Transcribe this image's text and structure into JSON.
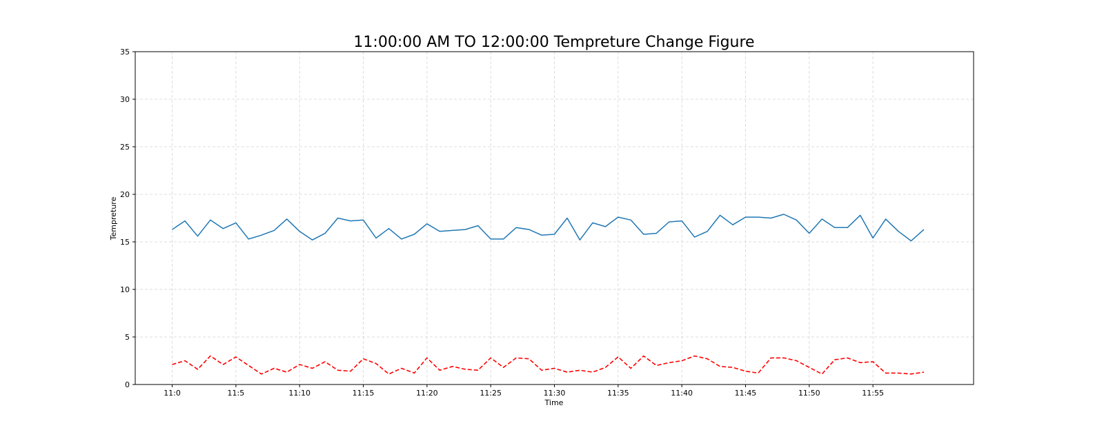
{
  "chart_data": {
    "type": "line",
    "title": "11:00:00 AM TO 12:00:00 Tempreture Change Figure",
    "xlabel": "Time",
    "ylabel": "Tempreture",
    "ylim": [
      0,
      35
    ],
    "yticks": [
      "0",
      "5",
      "10",
      "15",
      "20",
      "25",
      "30",
      "35"
    ],
    "xlim": [
      -2.9,
      62.9
    ],
    "xticks": [
      {
        "value": 0,
        "label": "11:0"
      },
      {
        "value": 5,
        "label": "11:5"
      },
      {
        "value": 10,
        "label": "11:10"
      },
      {
        "value": 15,
        "label": "11:15"
      },
      {
        "value": 20,
        "label": "11:20"
      },
      {
        "value": 25,
        "label": "11:25"
      },
      {
        "value": 30,
        "label": "11:30"
      },
      {
        "value": 35,
        "label": "11:35"
      },
      {
        "value": 40,
        "label": "11:40"
      },
      {
        "value": 45,
        "label": "11:45"
      },
      {
        "value": 50,
        "label": "11:50"
      },
      {
        "value": 55,
        "label": "11:55"
      }
    ],
    "grid": true,
    "x": [
      0,
      1,
      2,
      3,
      4,
      5,
      6,
      7,
      8,
      9,
      10,
      11,
      12,
      13,
      14,
      15,
      16,
      17,
      18,
      19,
      20,
      21,
      22,
      23,
      24,
      25,
      26,
      27,
      28,
      29,
      30,
      31,
      32,
      33,
      34,
      35,
      36,
      37,
      38,
      39,
      40,
      41,
      42,
      43,
      44,
      45,
      46,
      47,
      48,
      49,
      50,
      51,
      52,
      53,
      54,
      55,
      56,
      57,
      58,
      59
    ],
    "series": [
      {
        "color": "#1f77b4",
        "style": "solid",
        "values": [
          16.3,
          17.2,
          15.6,
          17.3,
          16.4,
          17.0,
          15.3,
          15.7,
          16.2,
          17.4,
          16.1,
          15.2,
          15.9,
          17.5,
          17.2,
          17.3,
          15.4,
          16.4,
          15.3,
          15.8,
          16.9,
          16.1,
          16.2,
          16.3,
          16.7,
          15.3,
          15.3,
          16.5,
          16.3,
          15.7,
          15.8,
          17.5,
          15.2,
          17.0,
          16.6,
          17.6,
          17.3,
          15.8,
          15.9,
          17.1,
          17.2,
          15.5,
          16.1,
          17.8,
          16.8,
          17.6,
          17.6,
          17.5,
          17.9,
          17.3,
          15.9,
          17.4,
          16.5,
          16.5,
          17.8,
          15.4,
          17.4,
          16.1,
          15.1,
          16.3
        ]
      },
      {
        "color": "#ff0000",
        "style": "dashed",
        "values": [
          2.1,
          2.5,
          1.6,
          3.0,
          2.1,
          2.9,
          2.0,
          1.1,
          1.7,
          1.3,
          2.1,
          1.7,
          2.4,
          1.5,
          1.4,
          2.7,
          2.2,
          1.1,
          1.7,
          1.2,
          2.8,
          1.5,
          1.9,
          1.6,
          1.5,
          2.8,
          1.8,
          2.8,
          2.7,
          1.5,
          1.7,
          1.3,
          1.5,
          1.3,
          1.8,
          2.9,
          1.7,
          3.0,
          2.0,
          2.3,
          2.5,
          3.0,
          2.7,
          1.9,
          1.8,
          1.4,
          1.2,
          2.8,
          2.8,
          2.5,
          1.8,
          1.1,
          2.6,
          2.8,
          2.3,
          2.4,
          1.2,
          1.2,
          1.1,
          1.3
        ]
      }
    ]
  }
}
